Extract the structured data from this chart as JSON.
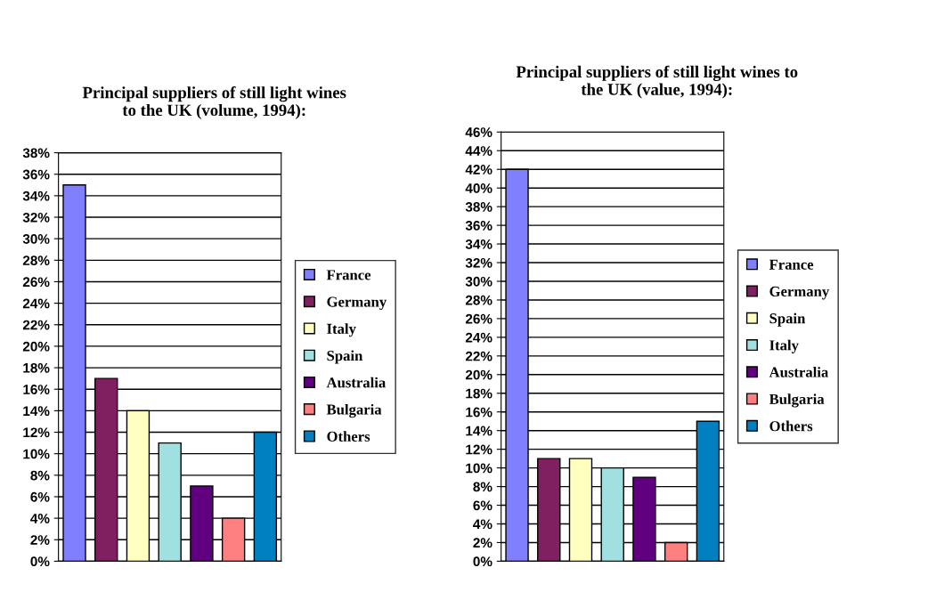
{
  "chart_data": [
    {
      "type": "bar",
      "title": "Principal suppliers of still light wines\nto the UK (volume, 1994):",
      "categories": [
        null
      ],
      "ylim": [
        0,
        38
      ],
      "yticks": [
        {
          "value": 0,
          "label": "0%"
        },
        {
          "value": 2,
          "label": "2%"
        },
        {
          "value": 4,
          "label": "4%"
        },
        {
          "value": 6,
          "label": "6%"
        },
        {
          "value": 8,
          "label": "8%"
        },
        {
          "value": 10,
          "label": "10%"
        },
        {
          "value": 12,
          "label": "12%"
        },
        {
          "value": 14,
          "label": "14%"
        },
        {
          "value": 16,
          "label": "16%"
        },
        {
          "value": 18,
          "label": "18%"
        },
        {
          "value": 20,
          "label": "20%"
        },
        {
          "value": 22,
          "label": "22%"
        },
        {
          "value": 24,
          "label": "24%"
        },
        {
          "value": 26,
          "label": "26%"
        },
        {
          "value": 28,
          "label": "28%"
        },
        {
          "value": 30,
          "label": "30%"
        },
        {
          "value": 32,
          "label": "32%"
        },
        {
          "value": 34,
          "label": "34%"
        },
        {
          "value": 36,
          "label": "36%"
        },
        {
          "value": 38,
          "label": "38%"
        }
      ],
      "grid": "y",
      "legend": "right",
      "series": [
        {
          "name": "France",
          "color": "#8080ff",
          "values": [
            35
          ]
        },
        {
          "name": "Germany",
          "color": "#802060",
          "values": [
            17
          ]
        },
        {
          "name": "Italy",
          "color": "#ffffc0",
          "values": [
            14
          ]
        },
        {
          "name": "Spain",
          "color": "#a0e0e0",
          "values": [
            11
          ]
        },
        {
          "name": "Australia",
          "color": "#600080",
          "values": [
            7
          ]
        },
        {
          "name": "Bulgaria",
          "color": "#ff8080",
          "values": [
            4
          ]
        },
        {
          "name": "Others",
          "color": "#0080c0",
          "values": [
            12
          ]
        }
      ]
    },
    {
      "type": "bar",
      "title": "Principal suppliers of still light wines to\nthe UK (value, 1994):",
      "categories": [
        null
      ],
      "ylim": [
        0,
        46
      ],
      "yticks": [
        {
          "value": 0,
          "label": "0%"
        },
        {
          "value": 2,
          "label": "2%"
        },
        {
          "value": 4,
          "label": "4%"
        },
        {
          "value": 6,
          "label": "6%"
        },
        {
          "value": 8,
          "label": "8%"
        },
        {
          "value": 10,
          "label": "10%"
        },
        {
          "value": 12,
          "label": "12%"
        },
        {
          "value": 14,
          "label": "14%"
        },
        {
          "value": 16,
          "label": "16%"
        },
        {
          "value": 18,
          "label": "18%"
        },
        {
          "value": 20,
          "label": "20%"
        },
        {
          "value": 22,
          "label": "22%"
        },
        {
          "value": 24,
          "label": "24%"
        },
        {
          "value": 26,
          "label": "26%"
        },
        {
          "value": 28,
          "label": "28%"
        },
        {
          "value": 30,
          "label": "30%"
        },
        {
          "value": 32,
          "label": "32%"
        },
        {
          "value": 34,
          "label": "34%"
        },
        {
          "value": 36,
          "label": "36%"
        },
        {
          "value": 38,
          "label": "38%"
        },
        {
          "value": 40,
          "label": "40%"
        },
        {
          "value": 42,
          "label": "42%"
        },
        {
          "value": 44,
          "label": "44%"
        },
        {
          "value": 46,
          "label": "46%"
        }
      ],
      "grid": "y",
      "legend": "right",
      "series": [
        {
          "name": "France",
          "color": "#8080ff",
          "values": [
            42
          ]
        },
        {
          "name": "Germany",
          "color": "#802060",
          "values": [
            11
          ]
        },
        {
          "name": "Spain",
          "color": "#ffffc0",
          "values": [
            11
          ]
        },
        {
          "name": "Italy",
          "color": "#a0e0e0",
          "values": [
            10
          ]
        },
        {
          "name": "Australia",
          "color": "#600080",
          "values": [
            9
          ]
        },
        {
          "name": "Bulgaria",
          "color": "#ff8080",
          "values": [
            2
          ]
        },
        {
          "name": "Others",
          "color": "#0080c0",
          "values": [
            15
          ]
        }
      ]
    }
  ]
}
